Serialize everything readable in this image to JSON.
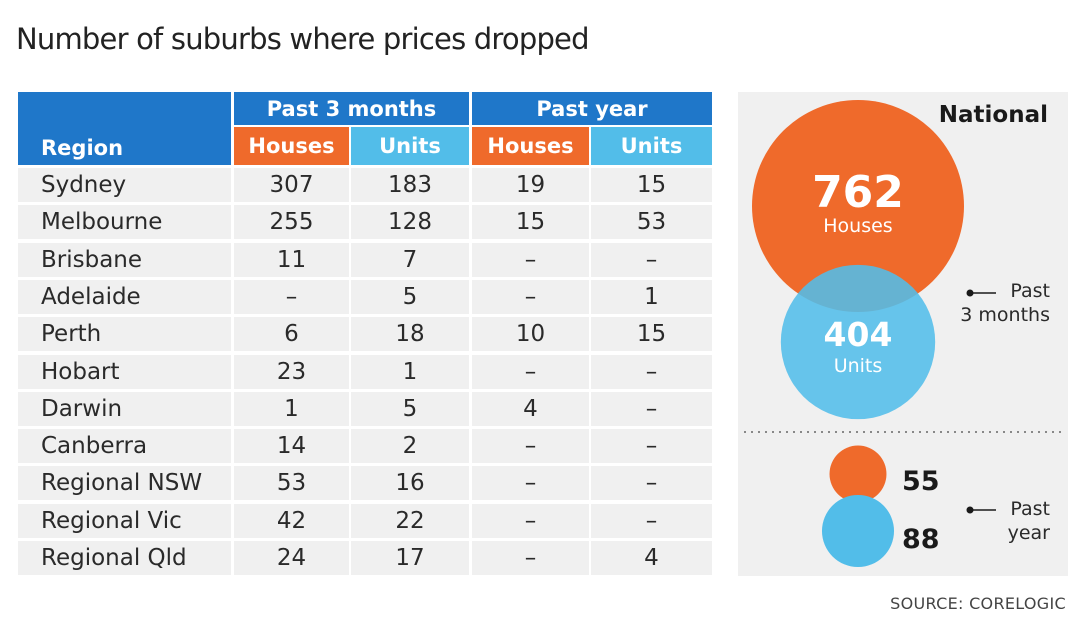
{
  "title": "Number of suburbs where prices dropped",
  "table": {
    "region_header": "Region",
    "group_headers": [
      "Past 3 months",
      "Past year"
    ],
    "sub_headers": [
      "Houses",
      "Units",
      "Houses",
      "Units"
    ],
    "rows": [
      {
        "region": "Sydney",
        "values": [
          "307",
          "183",
          "19",
          "15"
        ]
      },
      {
        "region": "Melbourne",
        "values": [
          "255",
          "128",
          "15",
          "53"
        ]
      },
      {
        "region": "Brisbane",
        "values": [
          "11",
          "7",
          "–",
          "–"
        ]
      },
      {
        "region": "Adelaide",
        "values": [
          "–",
          "5",
          "–",
          "1"
        ]
      },
      {
        "region": "Perth",
        "values": [
          "6",
          "18",
          "10",
          "15"
        ]
      },
      {
        "region": "Hobart",
        "values": [
          "23",
          "1",
          "–",
          "–"
        ]
      },
      {
        "region": "Darwin",
        "values": [
          "1",
          "5",
          "4",
          "–"
        ]
      },
      {
        "region": "Canberra",
        "values": [
          "14",
          "2",
          "–",
          "–"
        ]
      },
      {
        "region": "Regional NSW",
        "values": [
          "53",
          "16",
          "–",
          "–"
        ]
      },
      {
        "region": "Regional Vic",
        "values": [
          "42",
          "22",
          "–",
          "–"
        ]
      },
      {
        "region": "Regional Qld",
        "values": [
          "24",
          "17",
          "–",
          "4"
        ]
      }
    ]
  },
  "panel": {
    "heading": "National",
    "past3": {
      "houses_value": "762",
      "houses_label": "Houses",
      "units_value": "404",
      "units_label": "Units",
      "note_line1": "Past",
      "note_line2": "3 months"
    },
    "pastyear": {
      "houses_value": "55",
      "units_value": "88",
      "note_line1": "Past",
      "note_line2": "year"
    }
  },
  "source": "SOURCE: CORELOGIC",
  "colors": {
    "header_blue": "#1f77c9",
    "houses_orange": "#ef6a2b",
    "units_blue": "#52bde9",
    "row_bg": "#f0f0f0"
  },
  "chart_data": {
    "type": "table",
    "title": "Number of suburbs where prices dropped",
    "columns": [
      "Region",
      "Past 3 months Houses",
      "Past 3 months Units",
      "Past year Houses",
      "Past year Units"
    ],
    "national": {
      "past_3_months": {
        "Houses": 762,
        "Units": 404
      },
      "past_year": {
        "Houses": 55,
        "Units": 88
      }
    }
  }
}
